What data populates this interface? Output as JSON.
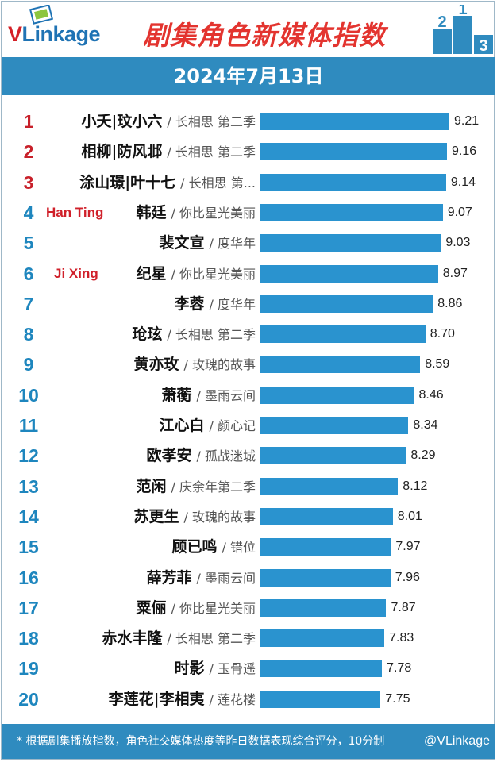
{
  "header": {
    "logo_text": "Linkage",
    "logo_initial": "V",
    "title": "剧集角色新媒体指数",
    "podium": [
      "2",
      "1",
      "3"
    ],
    "date": "2024年7月13日"
  },
  "chart_data": {
    "type": "bar",
    "orientation": "horizontal",
    "title": "剧集角色新媒体指数",
    "subtitle": "2024年7月13日",
    "xlim": [
      5.2,
      9.7
    ],
    "grid": false,
    "rows": [
      {
        "rank": "1",
        "character": "小夭|玟小六",
        "drama": "/ 长相思 第二季",
        "value": 9.21,
        "value_label": "9.21",
        "english": ""
      },
      {
        "rank": "2",
        "character": "相柳|防风邶",
        "drama": "/ 长相思 第二季",
        "value": 9.16,
        "value_label": "9.16",
        "english": ""
      },
      {
        "rank": "3",
        "character": "涂山璟|叶十七",
        "drama": "/ 长相思 第...",
        "value": 9.14,
        "value_label": "9.14",
        "english": ""
      },
      {
        "rank": "4",
        "character": "韩廷",
        "drama": "/ 你比星光美丽",
        "value": 9.07,
        "value_label": "9.07",
        "english": "Han Ting"
      },
      {
        "rank": "5",
        "character": "裴文宣",
        "drama": "/ 度华年",
        "value": 9.03,
        "value_label": "9.03",
        "english": ""
      },
      {
        "rank": "6",
        "character": "纪星",
        "drama": "/ 你比星光美丽",
        "value": 8.97,
        "value_label": "8.97",
        "english": "Ji Xing"
      },
      {
        "rank": "7",
        "character": "李蓉",
        "drama": "/ 度华年",
        "value": 8.86,
        "value_label": "8.86",
        "english": ""
      },
      {
        "rank": "8",
        "character": "玱玹",
        "drama": "/ 长相思 第二季",
        "value": 8.7,
        "value_label": "8.70",
        "english": ""
      },
      {
        "rank": "9",
        "character": "黄亦玫",
        "drama": "/ 玫瑰的故事",
        "value": 8.59,
        "value_label": "8.59",
        "english": ""
      },
      {
        "rank": "10",
        "character": "萧蘅",
        "drama": "/ 墨雨云间",
        "value": 8.46,
        "value_label": "8.46",
        "english": ""
      },
      {
        "rank": "11",
        "character": "江心白",
        "drama": "/ 颜心记",
        "value": 8.34,
        "value_label": "8.34",
        "english": ""
      },
      {
        "rank": "12",
        "character": "欧孝安",
        "drama": "/ 孤战迷城",
        "value": 8.29,
        "value_label": "8.29",
        "english": ""
      },
      {
        "rank": "13",
        "character": "范闲",
        "drama": "/ 庆余年第二季",
        "value": 8.12,
        "value_label": "8.12",
        "english": ""
      },
      {
        "rank": "14",
        "character": "苏更生",
        "drama": "/ 玫瑰的故事",
        "value": 8.01,
        "value_label": "8.01",
        "english": ""
      },
      {
        "rank": "15",
        "character": "顾已鸣",
        "drama": "/ 错位",
        "value": 7.97,
        "value_label": "7.97",
        "english": ""
      },
      {
        "rank": "16",
        "character": "薛芳菲",
        "drama": "/ 墨雨云间",
        "value": 7.96,
        "value_label": "7.96",
        "english": ""
      },
      {
        "rank": "17",
        "character": "粟俪",
        "drama": "/ 你比星光美丽",
        "value": 7.87,
        "value_label": "7.87",
        "english": ""
      },
      {
        "rank": "18",
        "character": "赤水丰隆",
        "drama": "/ 长相思 第二季",
        "value": 7.83,
        "value_label": "7.83",
        "english": ""
      },
      {
        "rank": "19",
        "character": "时影",
        "drama": "/ 玉骨遥",
        "value": 7.78,
        "value_label": "7.78",
        "english": ""
      },
      {
        "rank": "20",
        "character": "李莲花|李相夷",
        "drama": "/ 莲花楼",
        "value": 7.75,
        "value_label": "7.75",
        "english": ""
      }
    ]
  },
  "colors": {
    "bar": "#2a93cf",
    "band": "#2f8bbf",
    "title": "#e3342f",
    "top_rank": "#c8202a",
    "rank": "#1e86be"
  },
  "footer": {
    "note": "* 根据剧集播放指数，角色社交媒体热度等昨日数据表现综合评分，10分制",
    "watermark": "@VLinkage"
  }
}
